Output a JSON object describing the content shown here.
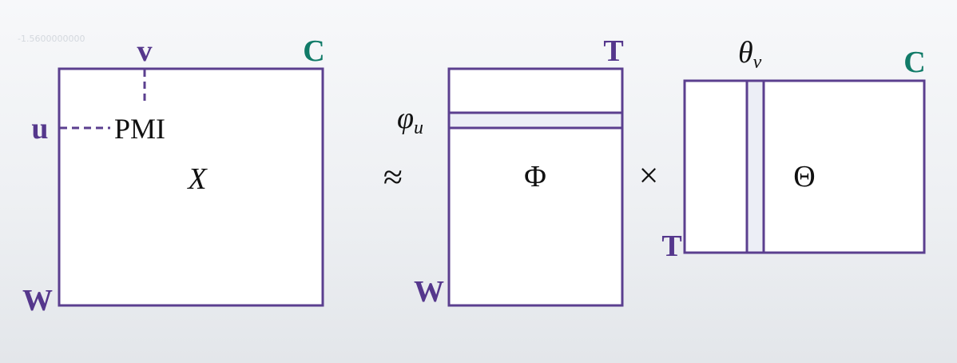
{
  "colors": {
    "matrix": "#5b3f8f",
    "dim_purple": "#55378c",
    "dim_green": "#117b68",
    "highlight_fill": "#eceef6",
    "text": "#111111"
  },
  "background": {
    "watermark": "-1.5600000000"
  },
  "matrix_x": {
    "symbol": "X",
    "row_dim": "W",
    "col_dim": "C",
    "row_index": "u",
    "col_index": "v",
    "cell_label": "PMI"
  },
  "approx_symbol": "≈",
  "matrix_phi": {
    "symbol": "Φ",
    "row_dim": "W",
    "col_dim": "T",
    "row_vector": "φ",
    "row_vector_sub": "u"
  },
  "times_symbol": "×",
  "matrix_theta": {
    "symbol": "Θ",
    "row_dim": "T",
    "col_dim": "C",
    "col_vector": "θ",
    "col_vector_sub": "v"
  }
}
